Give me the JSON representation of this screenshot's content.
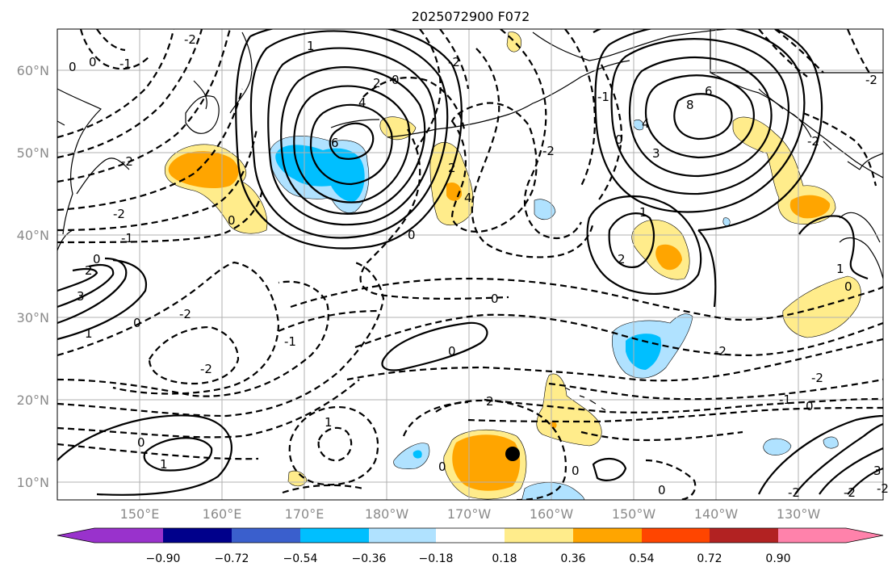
{
  "title": "2025072900 F072",
  "lat_labels": [
    "60°N",
    "50°N",
    "40°N",
    "30°N",
    "20°N",
    "10°N"
  ],
  "lon_labels": [
    "150°E",
    "160°E",
    "170°E",
    "180°W",
    "170°W",
    "160°W",
    "150°W",
    "140°W",
    "130°W"
  ],
  "colorbar": {
    "ticks": [
      "−0.90",
      "−0.72",
      "−0.54",
      "−0.36",
      "−0.18",
      "0.18",
      "0.36",
      "0.54",
      "0.72",
      "0.90"
    ],
    "colors": [
      "#9932cc",
      "#00008b",
      "#3a5fcd",
      "#00bfff",
      "#b0e2ff",
      "#ffffff",
      "#ffec8b",
      "#ffa500",
      "#ff4500",
      "#b22222",
      "#ff82ab"
    ]
  },
  "contour_labels": {
    "nw_low": "-1",
    "nw_neg2": "-2",
    "nw_neg2b": "-2",
    "nw_neg1": "-1",
    "nw_zero": "0",
    "nw_zero2": "0",
    "c1": "1",
    "c2": "2",
    "c4": "4",
    "c6": "6",
    "c_1b": "-2",
    "c_0a": "0",
    "c_0b": "0",
    "w_zero": "0",
    "w_two": "2",
    "w_three": "3",
    "w_one": "1",
    "w_zero2": "0",
    "mid_neg2": "-2",
    "mid_neg1": "-1",
    "mid_neg2b": "-2",
    "mid_0": "0",
    "mid_0b": "0",
    "e_8": "8",
    "e_6": "6",
    "e_4": "4",
    "e_3": "3",
    "e_0": "0",
    "e_1": "1",
    "e_2": "2",
    "ne_neg2": "-2",
    "ne_neg2b": "-2",
    "ne_neg1": "-1",
    "se_neg2": "-2",
    "se_neg1": "-1",
    "se_0": "0",
    "se_1": "1",
    "se_0b": "0",
    "se_3": "3",
    "se_neg2b": "-2",
    "se_neg2c": "-2",
    "s_0": "0",
    "s_1": "1",
    "s_1b": "1",
    "s_2": "2",
    "s_0b": "0",
    "s_0c": "0",
    "s_neg2": "-2",
    "s_0d": "0",
    "s_neg2b": "-2",
    "cp_neg2": "-2",
    "cp_4": "4",
    "cp_2": "2",
    "cp_0": "0",
    "cp_neg2b": "-2"
  },
  "storm_marker": "cyclone-position"
}
